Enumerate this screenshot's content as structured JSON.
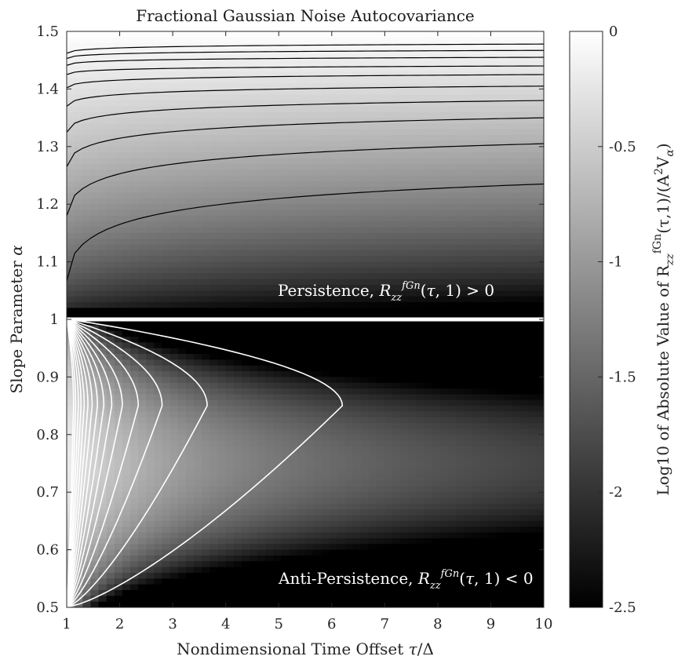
{
  "chart_data": {
    "type": "heatmap",
    "title": "Fractional Gaussian Noise Autocovariance",
    "xlabel": "Nondimensional Time Offset τ/Δ",
    "ylabel": "Slope Parameter α",
    "colorbar_label": "Log10 of Absolute Value of R_zz^fGn(τ,1)/(A²V_α)",
    "xlim": [
      1,
      10
    ],
    "ylim": [
      0.5,
      1.5
    ],
    "clim": [
      -2.5,
      0
    ],
    "colormap": "gray",
    "xticks": [
      "1",
      "2",
      "3",
      "4",
      "5",
      "6",
      "7",
      "8",
      "9",
      "10"
    ],
    "yticks": [
      "0.5",
      "0.6",
      "0.7",
      "0.8",
      "0.9",
      "1",
      "1.1",
      "1.2",
      "1.3",
      "1.4",
      "1.5"
    ],
    "cticks": [
      "0",
      "-0.5",
      "-1",
      "-1.5",
      "-2",
      "-2.5"
    ],
    "divider_alpha": 1,
    "contours_upper": {
      "color": "#000000",
      "alpha_at_tau_1": [
        1.067,
        1.18,
        1.265,
        1.325,
        1.37,
        1.402,
        1.425,
        1.441,
        1.453,
        1.462
      ],
      "alpha_at_tau_10": [
        1.235,
        1.305,
        1.35,
        1.38,
        1.405,
        1.425,
        1.44,
        1.455,
        1.467,
        1.478
      ]
    },
    "contours_lower": {
      "color": "#ffffff",
      "peak_alpha": 0.85,
      "peak_tau": [
        6.2,
        3.65,
        2.8,
        2.35,
        2.05,
        1.85,
        1.7,
        1.58,
        1.48,
        1.4,
        1.33,
        1.27,
        1.22,
        1.17,
        1.13
      ]
    },
    "annotations": {
      "upper": "Persistence, R_zz^fGn(τ,1) > 0",
      "lower": "Anti-Persistence, R_zz^fGn(τ,1) < 0"
    }
  }
}
